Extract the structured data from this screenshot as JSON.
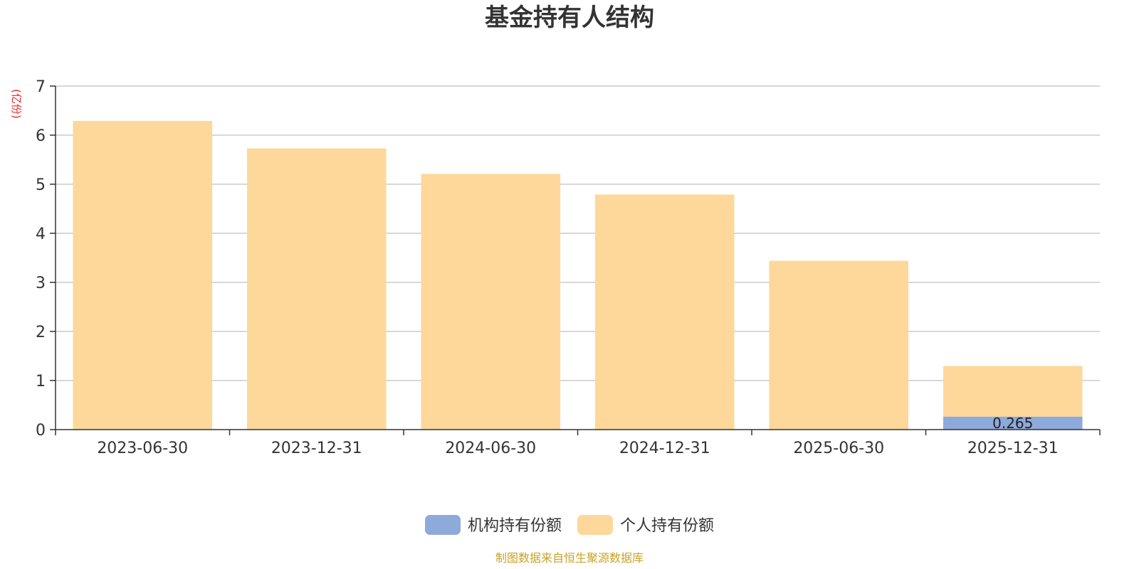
{
  "chart_data": {
    "type": "bar",
    "stacked": true,
    "title": "基金持有人结构",
    "unit_label": "(亿份)",
    "categories": [
      "2023-06-30",
      "2023-12-31",
      "2024-06-30",
      "2024-12-31",
      "2025-06-30",
      "2025-12-31"
    ],
    "series": [
      {
        "name": "机构持有份额",
        "color": "#8EAADB",
        "values": [
          0,
          0,
          0,
          0,
          0,
          0.265
        ],
        "labels": [
          "",
          "",
          "",
          "",
          "",
          "0.265"
        ]
      },
      {
        "name": "个人持有份额",
        "color": "#FDD89A",
        "values": [
          6.29,
          5.73,
          5.21,
          4.79,
          3.44,
          1.03
        ],
        "labels": [
          "",
          "",
          "",
          "",
          "",
          ""
        ]
      }
    ],
    "ylim": [
      0,
      7
    ],
    "yticks": [
      0,
      1,
      2,
      3,
      4,
      5,
      6,
      7
    ],
    "grid": true,
    "legend_position": "bottom-center",
    "source_note": "制图数据来自恒生聚源数据库",
    "colors": {
      "unit_label": "#E8262A",
      "source_note": "#C9A227",
      "grid": "#CCCCCC",
      "axis": "#333333"
    }
  }
}
